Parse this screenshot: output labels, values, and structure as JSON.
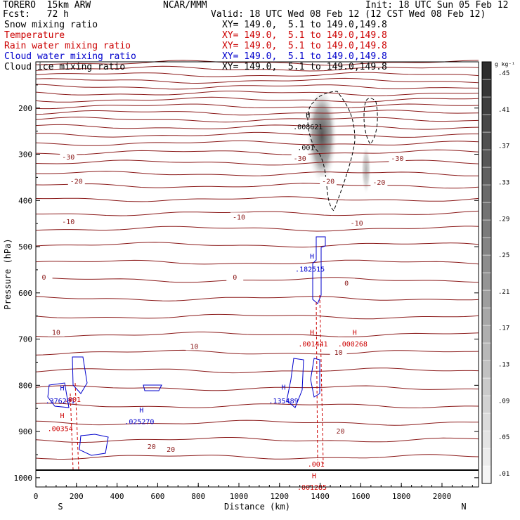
{
  "header": {
    "model": "TORERO  15km ARW",
    "center": "NCAR/MMM",
    "init": "Init: 18 UTC Sun 05 Feb 12",
    "fcst": "Fcst:   72 h",
    "valid": "Valid: 18 UTC Wed 08 Feb 12 (12 CST Wed 08 Feb 12)"
  },
  "fields": [
    {
      "name": "Snow mixing ratio",
      "color": "#000000"
    },
    {
      "name": "Temperature",
      "color": "#cc0000"
    },
    {
      "name": "Rain water mixing ratio",
      "color": "#cc0000"
    },
    {
      "name": "Cloud water mixing ratio",
      "color": "#0000cc"
    },
    {
      "name": "Cloud ice mixing ratio",
      "color": "#000000"
    }
  ],
  "xsec_label": "XY= 149.0,  5.1 to 149.0,149.8",
  "colorbar": {
    "unit": "g kg⁻¹",
    "labels": [
      ".01",
      ".05",
      ".09",
      ".13",
      ".17",
      ".21",
      ".25",
      ".29",
      ".33",
      ".37",
      ".41",
      ".45"
    ]
  },
  "chart_data": {
    "type": "contour-cross-section",
    "xlabel": "Distance (km)",
    "ylabel": "Pressure (hPa)",
    "xlim": [
      0,
      2180
    ],
    "ylim": [
      1020,
      100
    ],
    "x_ticks": [
      0,
      200,
      400,
      600,
      800,
      1000,
      1200,
      1400,
      1600,
      1800,
      2000
    ],
    "y_ticks": [
      200,
      300,
      400,
      500,
      600,
      700,
      800,
      900,
      1000
    ],
    "left_end": "S",
    "right_end": "N",
    "temperature_labels": [
      {
        "text": "-30",
        "x": 160,
        "p": 305
      },
      {
        "text": "-30",
        "x": 1300,
        "p": 308
      },
      {
        "text": "-30",
        "x": 1780,
        "p": 308
      },
      {
        "text": "-20",
        "x": 200,
        "p": 358
      },
      {
        "text": "-20",
        "x": 1440,
        "p": 358
      },
      {
        "text": "-20",
        "x": 1690,
        "p": 360
      },
      {
        "text": "-10",
        "x": 160,
        "p": 445
      },
      {
        "text": "-10",
        "x": 1000,
        "p": 435
      },
      {
        "text": "-10",
        "x": 1580,
        "p": 448
      },
      {
        "text": "0",
        "x": 40,
        "p": 565
      },
      {
        "text": "0",
        "x": 980,
        "p": 565
      },
      {
        "text": "0",
        "x": 1530,
        "p": 578
      },
      {
        "text": "10",
        "x": 100,
        "p": 685
      },
      {
        "text": "10",
        "x": 780,
        "p": 715
      },
      {
        "text": "10",
        "x": 1490,
        "p": 728
      },
      {
        "text": "20",
        "x": 570,
        "p": 932
      },
      {
        "text": "20",
        "x": 665,
        "p": 938
      },
      {
        "text": "20",
        "x": 1500,
        "p": 898
      }
    ],
    "maxima": [
      {
        "field": "Snow mixing ratio",
        "value": ".008621",
        "x": 1340,
        "p": 240,
        "color": "#000000"
      },
      {
        "field": "Snow mixing ratio",
        "value": ".001",
        "x": 1330,
        "p": 285,
        "color": "#000000"
      },
      {
        "field": "Cloud water mixing ratio",
        "value": ".182515",
        "x": 1350,
        "p": 548,
        "color": "#0000cc"
      },
      {
        "field": "Rain water mixing ratio",
        "value": ".001441",
        "x": 1365,
        "p": 710,
        "color": "#cc0000"
      },
      {
        "field": "Rain water mixing ratio",
        "value": ".000268",
        "x": 1560,
        "p": 710,
        "color": "#cc0000"
      },
      {
        "field": "Cloud water mixing ratio",
        "value": ".376201",
        "x": 120,
        "p": 833,
        "color": "#0000cc"
      },
      {
        "field": "Rain water mixing ratio",
        "value": ".001",
        "x": 180,
        "p": 830,
        "color": "#cc0000"
      },
      {
        "field": "Rain water mixing ratio",
        "value": ".00354",
        "x": 120,
        "p": 893,
        "color": "#cc0000"
      },
      {
        "field": "Cloud water mixing ratio",
        "value": ".025270",
        "x": 510,
        "p": 878,
        "color": "#0000cc"
      },
      {
        "field": "Cloud water mixing ratio",
        "value": ".135489",
        "x": 1220,
        "p": 833,
        "color": "#0000cc"
      },
      {
        "field": "Rain water mixing ratio",
        "value": ".001",
        "x": 1380,
        "p": 970,
        "color": "#cc0000"
      },
      {
        "field": "Rain water mixing ratio",
        "value": ".001285",
        "x": 1360,
        "p": 1020,
        "color": "#cc0000"
      }
    ],
    "h_markers": [
      {
        "x": 1340,
        "p": 215,
        "color": "#000000"
      },
      {
        "x": 1360,
        "p": 520,
        "color": "#0000cc"
      },
      {
        "x": 1360,
        "p": 685,
        "color": "#cc0000"
      },
      {
        "x": 1570,
        "p": 685,
        "color": "#cc0000"
      },
      {
        "x": 130,
        "p": 805,
        "color": "#0000cc"
      },
      {
        "x": 130,
        "p": 865,
        "color": "#cc0000"
      },
      {
        "x": 520,
        "p": 853,
        "color": "#0000cc"
      },
      {
        "x": 1220,
        "p": 803,
        "color": "#0000cc"
      },
      {
        "x": 1370,
        "p": 995,
        "color": "#cc0000"
      }
    ]
  }
}
